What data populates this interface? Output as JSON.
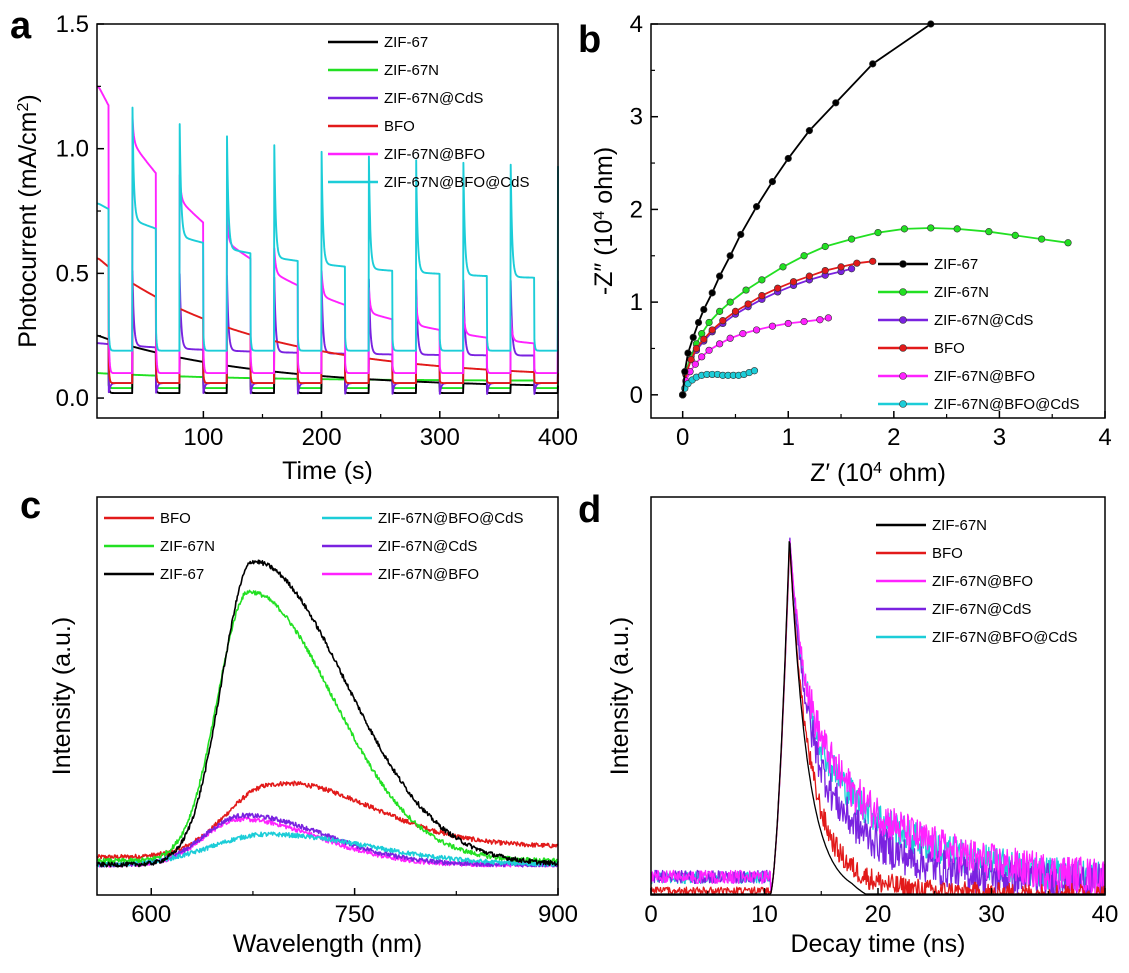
{
  "figure": {
    "panel_labels": [
      "a",
      "b",
      "c",
      "d"
    ]
  },
  "chart_data": [
    {
      "id": "a",
      "type": "line",
      "xlabel": "Time (s)",
      "ylabel_parts": [
        "Photocurrent (mA/cm",
        "2",
        ")"
      ],
      "xlim": [
        10,
        400
      ],
      "ylim": [
        -0.08,
        1.5
      ],
      "xticks": [
        100,
        200,
        300,
        400
      ],
      "xtick_labels": [
        "100",
        "200",
        "300",
        "400"
      ],
      "yticks": [
        0.0,
        0.5,
        1.0,
        1.5
      ],
      "ytick_labels": [
        "0.0",
        "0.5",
        "1.0",
        "1.5"
      ],
      "legend_position": "top-right",
      "switch_period_s": 40,
      "first_light_on_s": 20,
      "series": [
        {
          "name": "ZIF-67",
          "color": "#000000",
          "dark": 0.02,
          "light_start": 0.25,
          "light_end": 0.05,
          "spike": 0.0,
          "undershoot": 0.0
        },
        {
          "name": "ZIF-67N",
          "color": "#22e022",
          "dark": 0.04,
          "light_start": 0.1,
          "light_end": 0.07,
          "spike": 0.0,
          "undershoot": 0.0
        },
        {
          "name": "ZIF-67N@CdS",
          "color": "#7a22e0",
          "dark": 0.06,
          "light_start": 0.22,
          "light_end": 0.17,
          "spike": 0.3,
          "undershoot": 0.06
        },
        {
          "name": "BFO",
          "color": "#e21a1a",
          "dark": 0.06,
          "light_start": 0.56,
          "light_end": 0.1,
          "spike": 0.0,
          "undershoot": 0.0
        },
        {
          "name": "ZIF-67N@BFO",
          "color": "#ff22ff",
          "dark": 0.1,
          "light_start": 1.25,
          "light_end": 0.21,
          "spike": 0.1,
          "undershoot": 0.0
        },
        {
          "name": "ZIF-67N@BFO@CdS",
          "color": "#1ccdd8",
          "dark": 0.19,
          "light_start": 0.78,
          "light_end": 0.48,
          "spike": 0.45,
          "undershoot": 0.0
        }
      ]
    },
    {
      "id": "b",
      "type": "scatter",
      "xlabel_parts": [
        "Z′ (10",
        "4",
        " ohm)"
      ],
      "ylabel_parts": [
        "-Z″ (10",
        "4",
        " ohm)"
      ],
      "xlim": [
        -0.3,
        4
      ],
      "ylim": [
        -0.25,
        4
      ],
      "xticks": [
        0,
        1,
        2,
        3,
        4
      ],
      "xtick_labels": [
        "0",
        "1",
        "2",
        "3",
        "4"
      ],
      "yticks": [
        0,
        1,
        2,
        3,
        4
      ],
      "ytick_labels": [
        "0",
        "1",
        "2",
        "3",
        "4"
      ],
      "legend_position": "bottom-right",
      "series": [
        {
          "name": "ZIF-67",
          "color": "#000000",
          "x": [
            0.0,
            0.02,
            0.05,
            0.1,
            0.15,
            0.2,
            0.28,
            0.35,
            0.45,
            0.55,
            0.7,
            0.85,
            1.0,
            1.2,
            1.45,
            1.8,
            2.35
          ],
          "y": [
            0.0,
            0.25,
            0.45,
            0.62,
            0.78,
            0.92,
            1.1,
            1.28,
            1.5,
            1.73,
            2.03,
            2.3,
            2.55,
            2.85,
            3.15,
            3.57,
            4.0
          ]
        },
        {
          "name": "ZIF-67N",
          "color": "#22e022",
          "x": [
            0.0,
            0.03,
            0.08,
            0.13,
            0.18,
            0.25,
            0.35,
            0.45,
            0.6,
            0.75,
            0.95,
            1.15,
            1.35,
            1.6,
            1.85,
            2.1,
            2.35,
            2.6,
            2.9,
            3.15,
            3.4,
            3.65
          ],
          "y": [
            0.0,
            0.25,
            0.42,
            0.55,
            0.66,
            0.78,
            0.9,
            1.0,
            1.13,
            1.24,
            1.38,
            1.5,
            1.6,
            1.68,
            1.75,
            1.79,
            1.8,
            1.79,
            1.76,
            1.72,
            1.68,
            1.64
          ]
        },
        {
          "name": "ZIF-67N@CdS",
          "color": "#7a22e0",
          "x": [
            0.0,
            0.03,
            0.08,
            0.13,
            0.2,
            0.28,
            0.38,
            0.5,
            0.62,
            0.75,
            0.9,
            1.05,
            1.2,
            1.35,
            1.5,
            1.6
          ],
          "y": [
            0.0,
            0.22,
            0.38,
            0.48,
            0.58,
            0.68,
            0.77,
            0.87,
            0.95,
            1.03,
            1.11,
            1.18,
            1.24,
            1.29,
            1.33,
            1.36
          ]
        },
        {
          "name": "BFO",
          "color": "#e21a1a",
          "x": [
            0.0,
            0.03,
            0.08,
            0.13,
            0.2,
            0.28,
            0.38,
            0.5,
            0.62,
            0.75,
            0.9,
            1.05,
            1.2,
            1.35,
            1.5,
            1.65,
            1.8
          ],
          "y": [
            0.0,
            0.22,
            0.38,
            0.5,
            0.6,
            0.7,
            0.8,
            0.9,
            0.98,
            1.07,
            1.15,
            1.22,
            1.28,
            1.34,
            1.38,
            1.42,
            1.44
          ]
        },
        {
          "name": "ZIF-67N@BFO",
          "color": "#ff22ff",
          "x": [
            0.0,
            0.03,
            0.07,
            0.12,
            0.18,
            0.25,
            0.35,
            0.45,
            0.57,
            0.7,
            0.85,
            1.0,
            1.15,
            1.3,
            1.38
          ],
          "y": [
            0.0,
            0.15,
            0.25,
            0.33,
            0.41,
            0.48,
            0.55,
            0.61,
            0.66,
            0.7,
            0.74,
            0.77,
            0.79,
            0.81,
            0.83
          ]
        },
        {
          "name": "ZIF-67N@BFO@CdS",
          "color": "#1ccdd8",
          "x": [
            0.0,
            0.02,
            0.05,
            0.09,
            0.13,
            0.18,
            0.23,
            0.28,
            0.33,
            0.38,
            0.43,
            0.48,
            0.53,
            0.58,
            0.63,
            0.68
          ],
          "y": [
            0.0,
            0.07,
            0.12,
            0.16,
            0.19,
            0.21,
            0.22,
            0.22,
            0.22,
            0.21,
            0.21,
            0.21,
            0.21,
            0.22,
            0.24,
            0.26
          ]
        }
      ]
    },
    {
      "id": "c",
      "type": "line",
      "xlabel": "Wavelength (nm)",
      "ylabel": "Intensity (a.u.)",
      "xlim": [
        560,
        900
      ],
      "ylim": [
        0,
        1.05
      ],
      "xticks": [
        600,
        750,
        900
      ],
      "xtick_labels": [
        "600",
        "750",
        "900"
      ],
      "legend_position": "top",
      "series": [
        {
          "name": "BFO",
          "color": "#e21a1a",
          "base": 0.1,
          "amp": 0.19,
          "center": 688,
          "sigma_left": 32,
          "sigma_right": 70,
          "tail": 0.07
        },
        {
          "name": "ZIF-67N",
          "color": "#22e022",
          "base": 0.09,
          "amp": 0.71,
          "center": 672,
          "sigma_left": 23,
          "sigma_right": 62,
          "tail": 0.0
        },
        {
          "name": "ZIF-67",
          "color": "#000000",
          "base": 0.08,
          "amp": 0.8,
          "center": 675,
          "sigma_left": 23,
          "sigma_right": 68,
          "tail": 0.0
        },
        {
          "name": "ZIF-67N@BFO@CdS",
          "color": "#1ccdd8",
          "base": 0.08,
          "amp": 0.08,
          "center": 685,
          "sigma_left": 40,
          "sigma_right": 75,
          "tail": 0.0
        },
        {
          "name": "ZIF-67N@CdS",
          "color": "#7a22e0",
          "base": 0.08,
          "amp": 0.13,
          "center": 668,
          "sigma_left": 28,
          "sigma_right": 60,
          "tail": 0.0
        },
        {
          "name": "ZIF-67N@BFO",
          "color": "#ff22ff",
          "base": 0.08,
          "amp": 0.12,
          "center": 665,
          "sigma_left": 26,
          "sigma_right": 58,
          "tail": 0.0
        }
      ]
    },
    {
      "id": "d",
      "type": "line",
      "xlabel": "Decay time (ns)",
      "ylabel": "Intensity (a.u.)",
      "xlim": [
        0,
        40
      ],
      "ylim": [
        0,
        1.05
      ],
      "xticks": [
        0,
        10,
        20,
        30,
        40
      ],
      "xtick_labels": [
        "0",
        "10",
        "20",
        "30",
        "40"
      ],
      "legend_position": "top-right",
      "series": [
        {
          "name": "ZIF-67N",
          "color": "#000000",
          "peak": 0.95,
          "tau1": 1.6,
          "tau2": 3.0,
          "a2": 0.0,
          "noise": 0.0,
          "floor": 0.0
        },
        {
          "name": "BFO",
          "color": "#e21a1a",
          "peak": 0.93,
          "tau1": 1.6,
          "tau2": 4.5,
          "a2": 0.18,
          "noise": 0.03,
          "floor": 0.0
        },
        {
          "name": "ZIF-67N@BFO",
          "color": "#ff22ff",
          "peak": 0.92,
          "tau1": 1.3,
          "tau2": 8.5,
          "a2": 0.5,
          "noise": 0.05,
          "floor": 0.03
        },
        {
          "name": "ZIF-67N@CdS",
          "color": "#7a22e0",
          "peak": 0.93,
          "tau1": 1.3,
          "tau2": 6.0,
          "a2": 0.42,
          "noise": 0.05,
          "floor": 0.03
        },
        {
          "name": "ZIF-67N@BFO@CdS",
          "color": "#1ccdd8",
          "peak": 0.91,
          "tau1": 1.3,
          "tau2": 8.5,
          "a2": 0.48,
          "noise": 0.045,
          "floor": 0.03
        }
      ]
    }
  ]
}
